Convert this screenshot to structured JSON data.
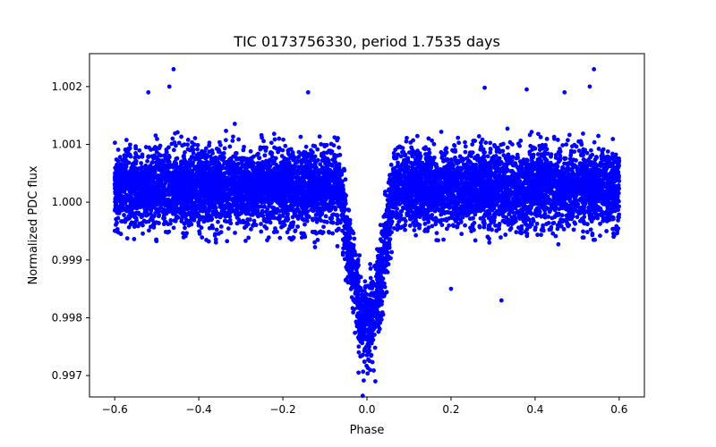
{
  "chart_data": {
    "type": "scatter",
    "title": "TIC 0173756330, period 1.7535 days",
    "xlabel": "Phase",
    "ylabel": "Normalized PDC flux",
    "xlim": [
      -0.66,
      0.66
    ],
    "ylim": [
      0.99663,
      1.00257
    ],
    "xticks": [
      -0.6,
      -0.4,
      -0.2,
      0.0,
      0.2,
      0.4,
      0.6
    ],
    "xtick_labels": [
      "−0.6",
      "−0.4",
      "−0.2",
      "0.0",
      "0.2",
      "0.4",
      "0.6"
    ],
    "yticks": [
      0.997,
      0.998,
      0.999,
      1.0,
      1.001,
      1.002
    ],
    "ytick_labels": [
      "0.997",
      "0.998",
      "0.999",
      "1.000",
      "1.001",
      "1.002"
    ],
    "grid": false,
    "marker_color": "#0000ff",
    "series": [
      {
        "name": "PDC flux",
        "model": {
          "phase_range": [
            -0.6,
            0.6
          ],
          "baseline": 1.00025,
          "baseline_sigma": 0.00033,
          "transit_center": 0.0,
          "transit_depth": 0.00245,
          "transit_halfwidth": 0.065,
          "n_points": 9000
        },
        "notable_points": [
          {
            "x": -0.46,
            "y": 1.0023
          },
          {
            "x": 0.54,
            "y": 1.0023
          },
          {
            "x": -0.52,
            "y": 1.0019
          },
          {
            "x": -0.47,
            "y": 1.002
          },
          {
            "x": 0.28,
            "y": 1.00198
          },
          {
            "x": 0.38,
            "y": 1.00195
          },
          {
            "x": 0.47,
            "y": 1.0019
          },
          {
            "x": 0.53,
            "y": 1.002
          },
          {
            "x": -0.14,
            "y": 1.0019
          },
          {
            "x": 0.32,
            "y": 0.9983
          },
          {
            "x": 0.2,
            "y": 0.9985
          },
          {
            "x": 0.02,
            "y": 0.9969
          },
          {
            "x": -0.01,
            "y": 0.99665
          },
          {
            "x": -0.02,
            "y": 0.99705
          }
        ]
      }
    ]
  }
}
